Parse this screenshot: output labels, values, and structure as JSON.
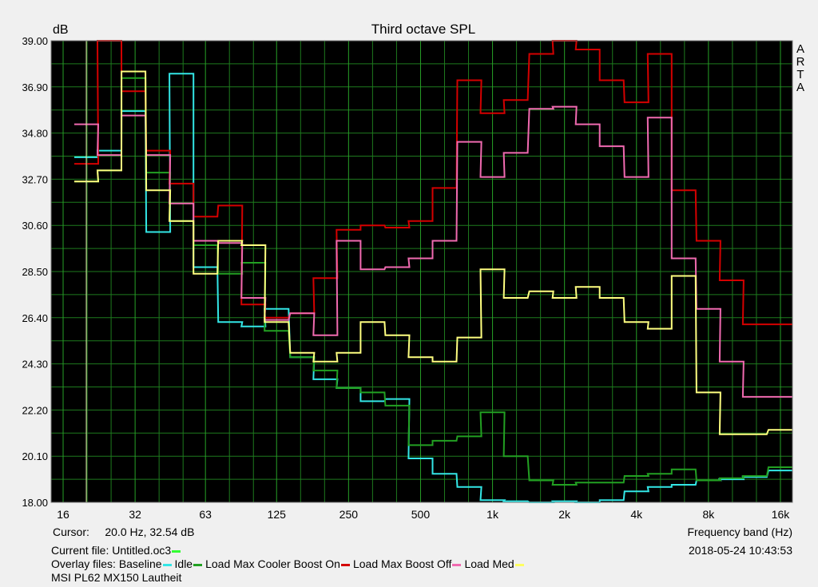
{
  "chart_data": {
    "type": "line",
    "title": "Third octave SPL",
    "ylabel": "dB",
    "xlabel": "Frequency band (Hz)",
    "brand": "A\nR\nT\nA",
    "ylim": [
      18.0,
      39.0
    ],
    "yticks": [
      "18.00",
      "20.10",
      "22.20",
      "24.30",
      "26.40",
      "28.50",
      "30.60",
      "32.70",
      "34.80",
      "36.90",
      "39.00"
    ],
    "xticks": [
      "16",
      "32",
      "63",
      "125",
      "250",
      "500",
      "1k",
      "2k",
      "4k",
      "8k",
      "16k"
    ],
    "x_bands_hz": [
      20,
      25,
      31.5,
      40,
      50,
      63,
      80,
      100,
      125,
      160,
      200,
      250,
      315,
      400,
      500,
      630,
      800,
      1000,
      1250,
      1600,
      2000,
      2500,
      3150,
      4000,
      5000,
      6300,
      8000,
      10000,
      12500,
      16000
    ],
    "cursor": {
      "label": "Cursor:",
      "value": "20.0 Hz, 32.54 dB",
      "x_hz": 20
    },
    "grid": true,
    "background": "#000000",
    "grid_color": "#1e7a1e",
    "series": [
      {
        "name": "Baseline",
        "color": "#33e6e6",
        "values": [
          33.7,
          34.0,
          35.8,
          30.3,
          37.5,
          28.7,
          26.2,
          26.0,
          26.8,
          24.6,
          23.6,
          23.2,
          22.6,
          22.7,
          20.0,
          19.3,
          18.7,
          18.1,
          18.05,
          17.9,
          18.05,
          17.9,
          18.1,
          18.5,
          18.7,
          18.8,
          19.0,
          19.05,
          19.15,
          19.45
        ]
      },
      {
        "name": "Idle",
        "color": "#22a022",
        "values": [
          32.6,
          33.1,
          37.3,
          33.0,
          30.8,
          29.7,
          28.4,
          28.9,
          25.8,
          24.6,
          24.0,
          23.2,
          23.0,
          22.4,
          20.6,
          20.8,
          21.0,
          22.1,
          20.1,
          19.0,
          18.8,
          18.9,
          18.9,
          19.2,
          19.3,
          19.5,
          19.0,
          19.1,
          19.2,
          19.6
        ]
      },
      {
        "name": "Load Max Cooler Boost On",
        "color": "#d40000",
        "values": [
          33.4,
          39.5,
          36.7,
          34.0,
          32.5,
          31.0,
          31.5,
          27.0,
          26.4,
          26.6,
          28.2,
          30.4,
          30.6,
          30.5,
          30.8,
          32.3,
          37.2,
          35.7,
          36.3,
          38.4,
          40.0,
          38.6,
          37.2,
          36.2,
          38.4,
          32.2,
          29.9,
          28.1,
          26.1,
          26.1
        ]
      },
      {
        "name": "Load Max Boost Off",
        "color": "#f06ab0",
        "values": [
          35.2,
          33.8,
          35.6,
          33.8,
          31.6,
          29.9,
          29.8,
          27.3,
          26.3,
          26.6,
          25.6,
          29.9,
          28.6,
          28.7,
          29.1,
          29.9,
          34.4,
          32.8,
          33.9,
          35.9,
          36.0,
          35.2,
          34.2,
          32.8,
          35.5,
          29.1,
          26.8,
          24.4,
          22.8,
          22.8
        ]
      },
      {
        "name": "Load Med",
        "color": "#ffff80",
        "values": [
          32.6,
          33.1,
          37.6,
          32.2,
          30.8,
          28.4,
          29.9,
          29.7,
          26.2,
          24.8,
          24.4,
          24.8,
          26.2,
          25.6,
          24.6,
          24.4,
          25.5,
          28.6,
          27.3,
          27.6,
          27.3,
          27.8,
          27.3,
          26.2,
          25.9,
          28.3,
          23.0,
          21.1,
          21.1,
          21.3
        ]
      }
    ]
  },
  "info": {
    "cursor_label": "Cursor:",
    "cursor_value": "20.0 Hz, 32.54 dB",
    "current_file_label": "Current file:",
    "current_file": "Untitled.oc3",
    "current_file_color": "#33ff33",
    "overlay_label": "Overlay files:",
    "overlay_items": [
      {
        "name": "Baseline",
        "swatch": "#33e6e6"
      },
      {
        "name": "Idle",
        "swatch": "#22a022"
      },
      {
        "name": "Load Max Cooler Boost On",
        "swatch": "#d40000"
      },
      {
        "name": "Load Max Boost Off",
        "swatch": "#f06ab0"
      },
      {
        "name": "Load Med",
        "swatch": "#ffff60"
      }
    ],
    "caption": "MSI PL62 MX150 Lautheit",
    "freq_label": "Frequency band (Hz)",
    "datetime": "2018-05-24   10:43:53"
  }
}
